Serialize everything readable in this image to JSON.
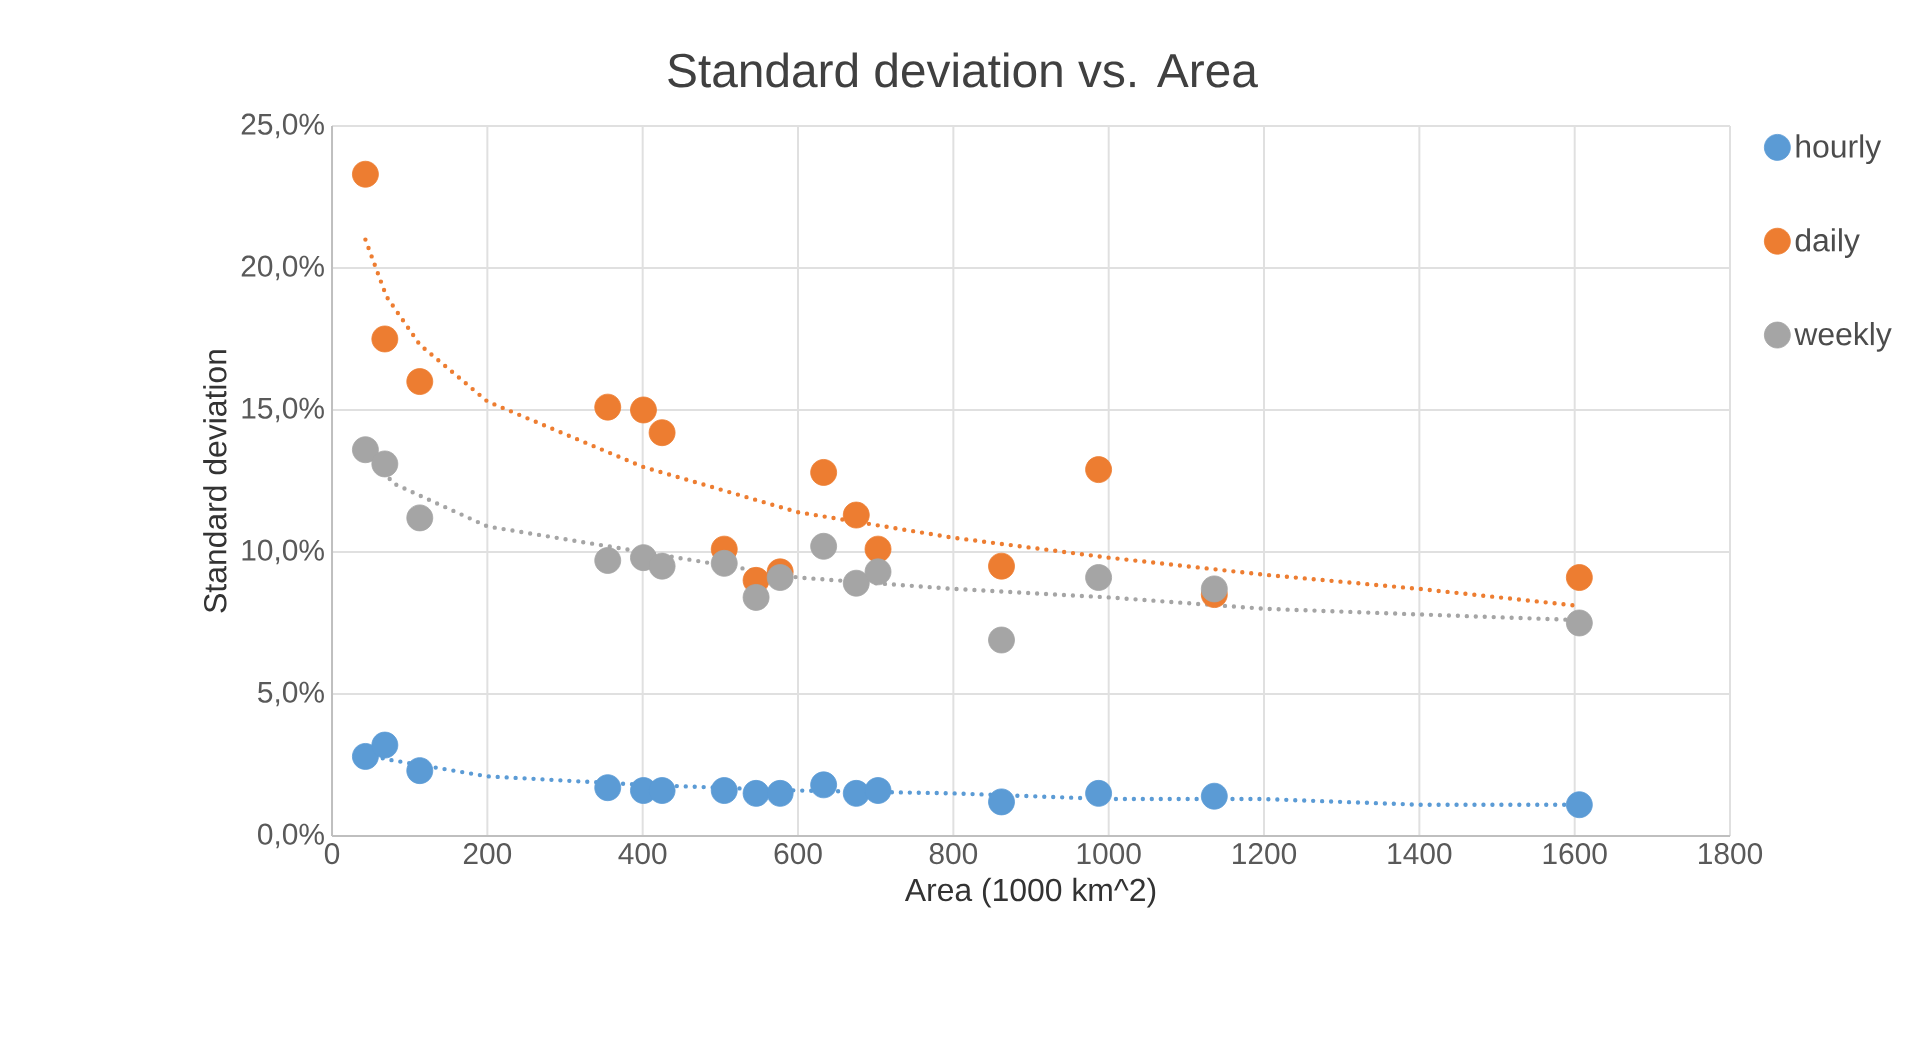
{
  "chart_data": {
    "type": "scatter",
    "title": "Standard deviation vs. Area",
    "xlabel": "Area (1000 km^2)",
    "ylabel": "Standard deviation",
    "xlim": [
      0,
      1800
    ],
    "xticks": [
      0,
      200,
      400,
      600,
      800,
      1000,
      1200,
      1400,
      1600,
      1800
    ],
    "ylim": [
      0,
      25
    ],
    "yticks": [
      {
        "value": 0,
        "label": "0,0%"
      },
      {
        "value": 5,
        "label": "5,0%"
      },
      {
        "value": 10,
        "label": "10,0%"
      },
      {
        "value": 15,
        "label": "15,0%"
      },
      {
        "value": 20,
        "label": "20,0%"
      },
      {
        "value": 25,
        "label": "25,0%"
      }
    ],
    "grid": true,
    "legend": "right",
    "marker": "circle",
    "series": [
      {
        "name": "hourly",
        "color": "#5b9bd5",
        "x": [
          43,
          68,
          113,
          355,
          401,
          425,
          505,
          546,
          577,
          633,
          675,
          703,
          862,
          987,
          1136,
          1606
        ],
        "values": [
          2.8,
          3.2,
          2.3,
          1.7,
          1.6,
          1.6,
          1.6,
          1.5,
          1.5,
          1.8,
          1.5,
          1.6,
          1.2,
          1.5,
          1.4,
          1.1
        ]
      },
      {
        "name": "daily",
        "color": "#ed7d31",
        "x": [
          43,
          68,
          113,
          355,
          401,
          425,
          505,
          546,
          577,
          633,
          675,
          703,
          862,
          987,
          1136,
          1606
        ],
        "values": [
          23.3,
          17.5,
          16.0,
          15.1,
          15.0,
          14.2,
          10.1,
          9.0,
          9.3,
          12.8,
          11.3,
          10.1,
          9.5,
          12.9,
          8.5,
          9.1
        ]
      },
      {
        "name": "weekly",
        "color": "#a5a5a5",
        "x": [
          43,
          68,
          113,
          355,
          401,
          425,
          505,
          546,
          577,
          633,
          675,
          703,
          862,
          987,
          1136,
          1606
        ],
        "values": [
          13.6,
          13.1,
          11.2,
          9.7,
          9.8,
          9.5,
          9.6,
          8.4,
          9.1,
          10.2,
          8.9,
          9.3,
          6.9,
          9.1,
          8.7,
          7.5
        ]
      },
      {
        "type": "line",
        "line_style": "dotted",
        "marker": "none",
        "color": "#5b9bd5",
        "x": [
          43,
          70,
          200,
          400,
          600,
          800,
          1000,
          1200,
          1400,
          1606
        ],
        "values": [
          2.9,
          2.7,
          2.1,
          1.8,
          1.6,
          1.5,
          1.3,
          1.3,
          1.1,
          1.1
        ]
      },
      {
        "type": "line",
        "line_style": "dotted",
        "marker": "none",
        "color": "#ed7d31",
        "x": [
          43,
          70,
          113,
          200,
          400,
          600,
          800,
          1000,
          1200,
          1400,
          1606
        ],
        "values": [
          21.0,
          19.0,
          17.3,
          15.3,
          13.0,
          11.4,
          10.5,
          9.8,
          9.2,
          8.7,
          8.1
        ]
      },
      {
        "type": "line",
        "line_style": "dotted",
        "marker": "none",
        "color": "#a5a5a5",
        "x": [
          43,
          80,
          200,
          400,
          600,
          800,
          1000,
          1200,
          1400,
          1606
        ],
        "values": [
          13.5,
          12.4,
          10.9,
          10.0,
          9.1,
          8.7,
          8.4,
          8.0,
          7.8,
          7.6
        ]
      }
    ]
  }
}
